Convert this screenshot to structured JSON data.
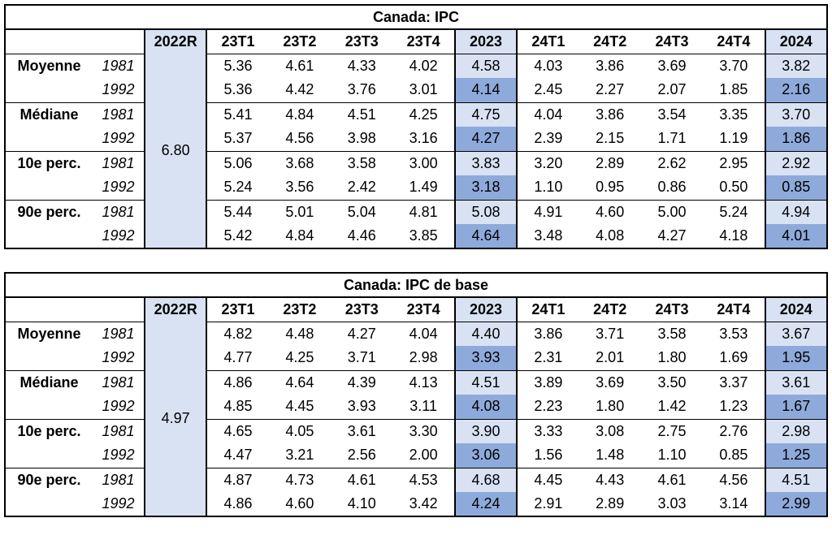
{
  "colors": {
    "light_blue": "#D9E2F3",
    "mid_blue": "#8EAADB",
    "border": "#000000",
    "background": "#FFFFFF",
    "text": "#000000"
  },
  "chart_data": [
    {
      "type": "table",
      "title": "Canada: IPC",
      "columns": [
        "2022R",
        "23T1",
        "23T2",
        "23T3",
        "23T4",
        "2023",
        "24T1",
        "24T2",
        "24T3",
        "24T4",
        "2024"
      ],
      "annual_columns": [
        "2023",
        "2024"
      ],
      "ref_value": "6.80",
      "row_groups": [
        {
          "label": "Moyenne",
          "rows": [
            {
              "year": "1981",
              "values": [
                "5.36",
                "4.61",
                "4.33",
                "4.02",
                "4.58",
                "4.03",
                "3.86",
                "3.69",
                "3.70",
                "3.82"
              ]
            },
            {
              "year": "1992",
              "values": [
                "5.36",
                "4.42",
                "3.76",
                "3.01",
                "4.14",
                "2.45",
                "2.27",
                "2.07",
                "1.85",
                "2.16"
              ]
            }
          ]
        },
        {
          "label": "Médiane",
          "rows": [
            {
              "year": "1981",
              "values": [
                "5.41",
                "4.84",
                "4.51",
                "4.25",
                "4.75",
                "4.04",
                "3.86",
                "3.54",
                "3.35",
                "3.70"
              ]
            },
            {
              "year": "1992",
              "values": [
                "5.37",
                "4.56",
                "3.98",
                "3.16",
                "4.27",
                "2.39",
                "2.15",
                "1.71",
                "1.19",
                "1.86"
              ]
            }
          ]
        },
        {
          "label": "10e perc.",
          "rows": [
            {
              "year": "1981",
              "values": [
                "5.06",
                "3.68",
                "3.58",
                "3.00",
                "3.83",
                "3.20",
                "2.89",
                "2.62",
                "2.95",
                "2.92"
              ]
            },
            {
              "year": "1992",
              "values": [
                "5.24",
                "3.56",
                "2.42",
                "1.49",
                "3.18",
                "1.10",
                "0.95",
                "0.86",
                "0.50",
                "0.85"
              ]
            }
          ]
        },
        {
          "label": "90e perc.",
          "rows": [
            {
              "year": "1981",
              "values": [
                "5.44",
                "5.01",
                "5.04",
                "4.81",
                "5.08",
                "4.91",
                "4.60",
                "5.00",
                "5.24",
                "4.94"
              ]
            },
            {
              "year": "1992",
              "values": [
                "5.42",
                "4.84",
                "4.46",
                "3.85",
                "4.64",
                "3.48",
                "4.08",
                "4.27",
                "4.18",
                "4.01"
              ]
            }
          ]
        }
      ]
    },
    {
      "type": "table",
      "title": "Canada: IPC de base",
      "columns": [
        "2022R",
        "23T1",
        "23T2",
        "23T3",
        "23T4",
        "2023",
        "24T1",
        "24T2",
        "24T3",
        "24T4",
        "2024"
      ],
      "annual_columns": [
        "2023",
        "2024"
      ],
      "ref_value": "4.97",
      "row_groups": [
        {
          "label": "Moyenne",
          "rows": [
            {
              "year": "1981",
              "values": [
                "4.82",
                "4.48",
                "4.27",
                "4.04",
                "4.40",
                "3.86",
                "3.71",
                "3.58",
                "3.53",
                "3.67"
              ]
            },
            {
              "year": "1992",
              "values": [
                "4.77",
                "4.25",
                "3.71",
                "2.98",
                "3.93",
                "2.31",
                "2.01",
                "1.80",
                "1.69",
                "1.95"
              ]
            }
          ]
        },
        {
          "label": "Médiane",
          "rows": [
            {
              "year": "1981",
              "values": [
                "4.86",
                "4.64",
                "4.39",
                "4.13",
                "4.51",
                "3.89",
                "3.69",
                "3.50",
                "3.37",
                "3.61"
              ]
            },
            {
              "year": "1992",
              "values": [
                "4.85",
                "4.45",
                "3.93",
                "3.11",
                "4.08",
                "2.23",
                "1.80",
                "1.42",
                "1.23",
                "1.67"
              ]
            }
          ]
        },
        {
          "label": "10e perc.",
          "rows": [
            {
              "year": "1981",
              "values": [
                "4.65",
                "4.05",
                "3.61",
                "3.30",
                "3.90",
                "3.33",
                "3.08",
                "2.75",
                "2.76",
                "2.98"
              ]
            },
            {
              "year": "1992",
              "values": [
                "4.47",
                "3.21",
                "2.56",
                "2.00",
                "3.06",
                "1.56",
                "1.48",
                "1.10",
                "0.85",
                "1.25"
              ]
            }
          ]
        },
        {
          "label": "90e perc.",
          "rows": [
            {
              "year": "1981",
              "values": [
                "4.87",
                "4.73",
                "4.61",
                "4.53",
                "4.68",
                "4.45",
                "4.43",
                "4.61",
                "4.56",
                "4.51"
              ]
            },
            {
              "year": "1992",
              "values": [
                "4.86",
                "4.60",
                "4.10",
                "3.42",
                "4.24",
                "2.91",
                "2.89",
                "3.03",
                "3.14",
                "2.99"
              ]
            }
          ]
        }
      ]
    }
  ]
}
